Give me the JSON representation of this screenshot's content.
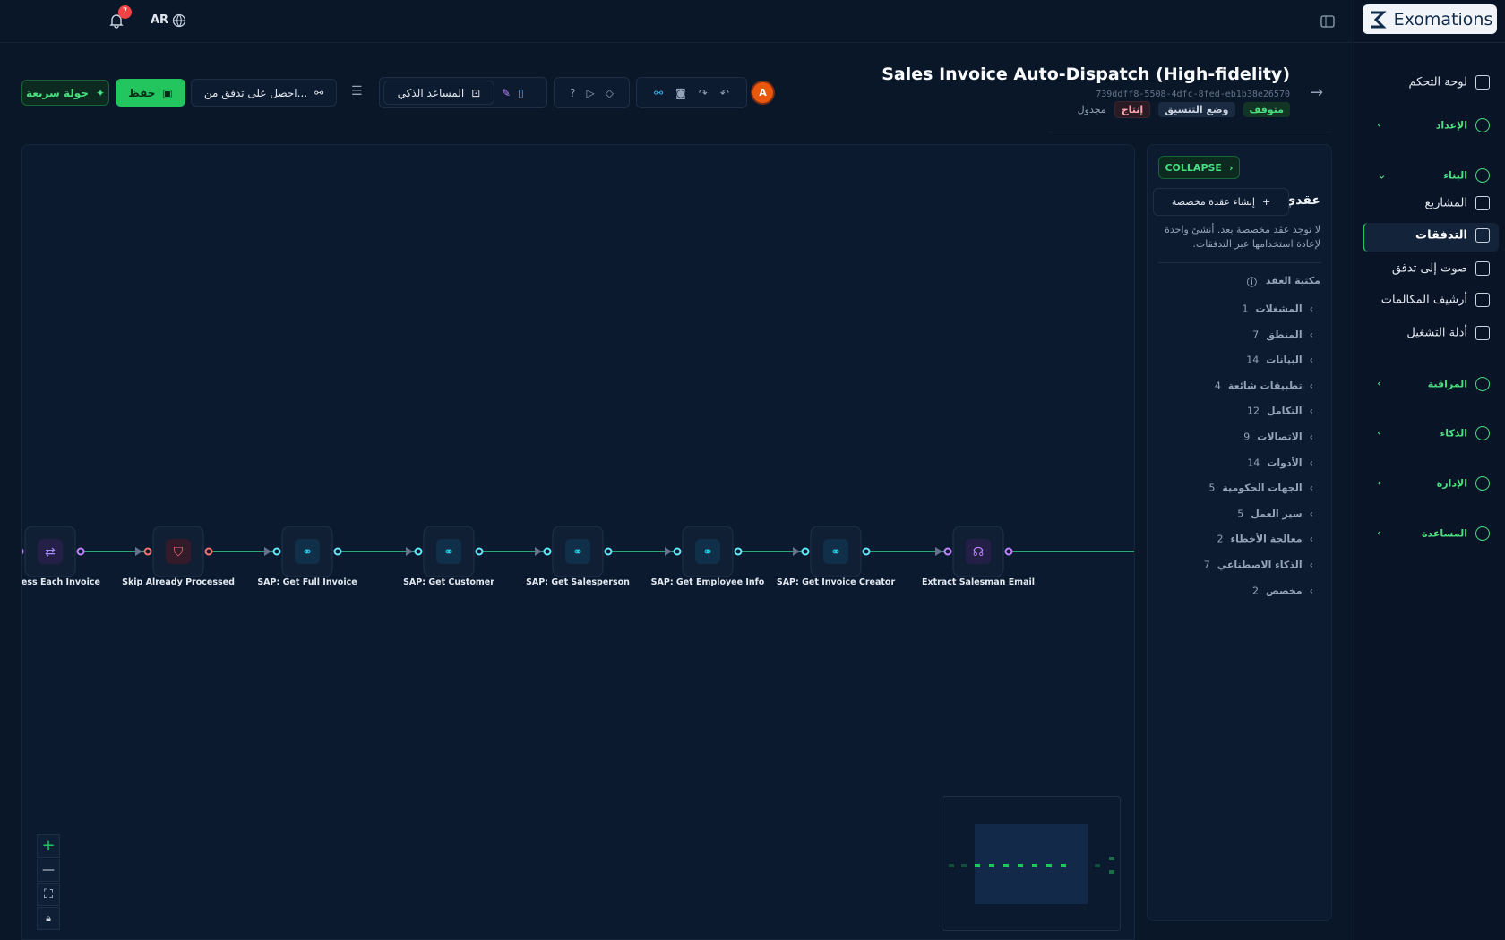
{
  "sidebar": {
    "logo": "Exomations",
    "nav": [
      "لوحة التحكم",
      "الإعداد",
      "البناء",
      "المشاريع",
      "التدفقات",
      "صوت إلى تدفق",
      "أرشيف المكالمات",
      "أدلة التشغيل",
      "المراقبة",
      "الذكاء",
      "الإدارة",
      "المساعدة"
    ]
  },
  "topbar": {
    "notifications": 7,
    "language": "AR"
  },
  "header": {
    "title": "Sales Invoice Auto-Dispatch (High-fidelity)",
    "id": "739ddff8-5508-4dfc-8fed-eb1b38e26570",
    "status": "متوقف",
    "mode": "وضع التنسيق",
    "environment": "إنتاج",
    "schedule": "مجدول"
  },
  "toolbar": {
    "quick_tour": "جولة سريعة",
    "save": "حفظ",
    "get_flow": "احصل على تدفق من...",
    "assistant": "المساعد الذكي",
    "avatar": "A"
  },
  "panel": {
    "collapse": "COLLAPSE",
    "my_nodes": "عقدي",
    "create": "إنشاء عقدة مخصصة",
    "empty": "لا توجد عقد مخصصة بعد. أنشئ واحدة لإعادة استخدامها عبر التدفقات.",
    "library": "مكتبة العقد",
    "categories": [
      {
        "name": "المشغلات",
        "count": 1
      },
      {
        "name": "المنطق",
        "count": 7
      },
      {
        "name": "البيانات",
        "count": 14
      },
      {
        "name": "تطبيقات شائعة",
        "count": 4
      },
      {
        "name": "التكامل",
        "count": 12
      },
      {
        "name": "الاتصالات",
        "count": 9
      },
      {
        "name": "الأدوات",
        "count": 14
      },
      {
        "name": "الجهات الحكومية",
        "count": 5
      },
      {
        "name": "سير العمل",
        "count": 5
      },
      {
        "name": "معالجة الأخطاء",
        "count": 2
      },
      {
        "name": "الذكاء الاصطناعي",
        "count": 7
      },
      {
        "name": "مخصص",
        "count": 2
      }
    ]
  },
  "flow": {
    "nodes": [
      "Process Each Invoice",
      "Skip Already Processed",
      "SAP: Get Full Invoice",
      "SAP: Get Customer",
      "SAP: Get Salesperson",
      "SAP: Get Employee Info",
      "SAP: Get Invoice Creator",
      "Extract Salesman Email"
    ]
  }
}
